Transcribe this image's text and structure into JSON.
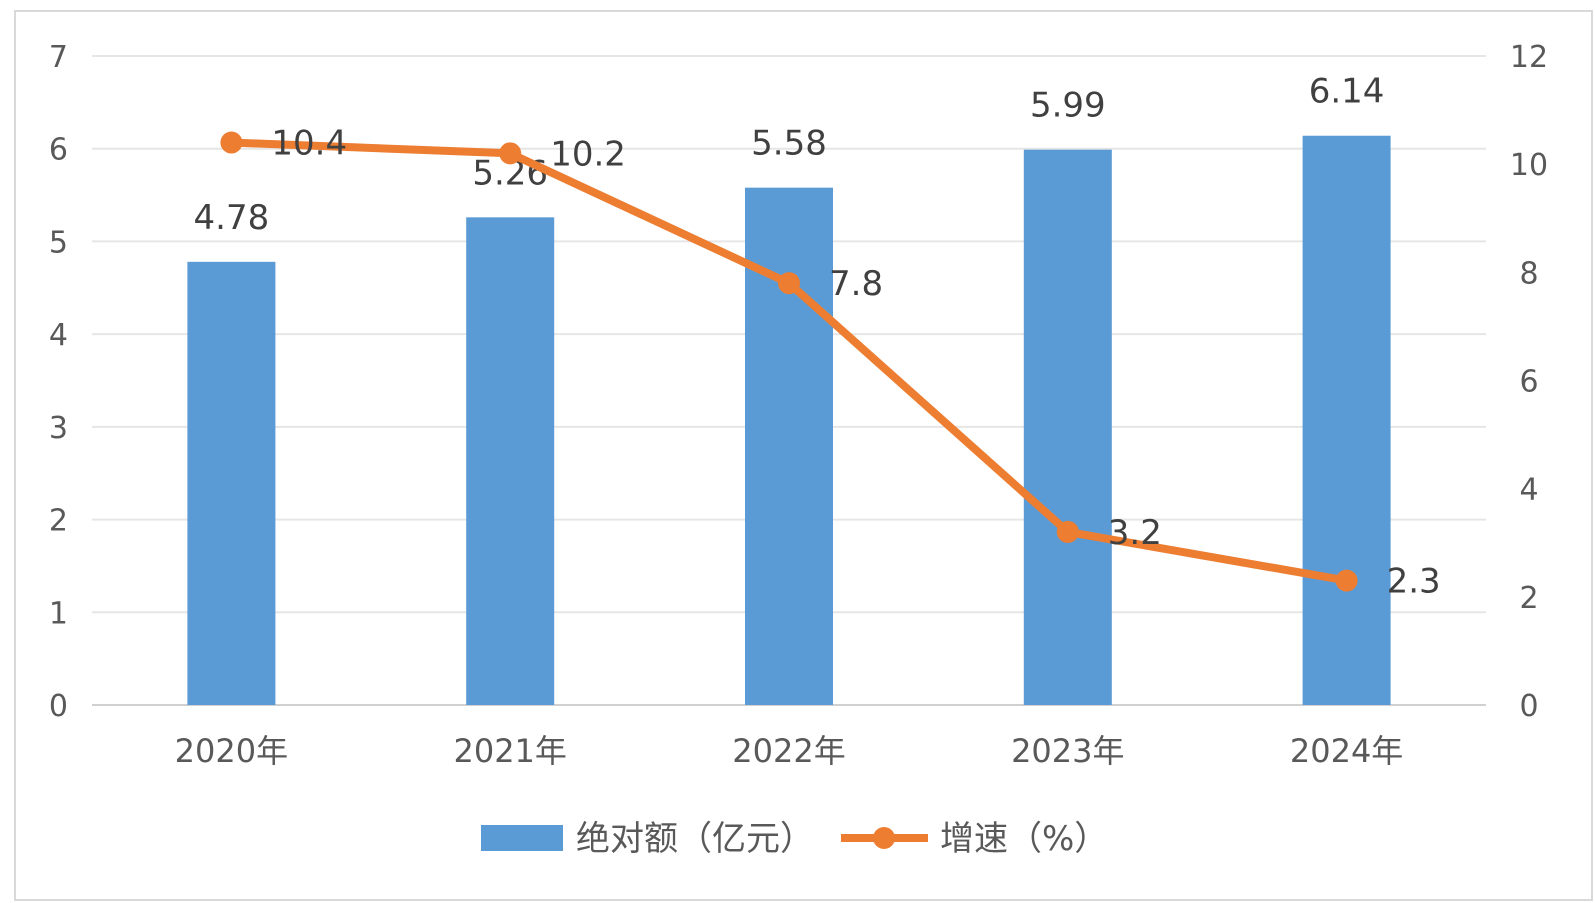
{
  "chart_data": {
    "type": "bar+line",
    "categories": [
      "2020年",
      "2021年",
      "2022年",
      "2023年",
      "2024年"
    ],
    "series": [
      {
        "name": "绝对额（亿元）",
        "type": "bar",
        "axis": "left",
        "color": "#5b9bd5",
        "values": [
          4.78,
          5.26,
          5.58,
          5.99,
          6.14
        ],
        "labels": [
          "4.78",
          "5.26",
          "5.58",
          "5.99",
          "6.14"
        ]
      },
      {
        "name": "增速（%）",
        "type": "line",
        "axis": "right",
        "color": "#ed7d31",
        "values": [
          10.4,
          10.2,
          7.8,
          3.2,
          2.3
        ],
        "labels": [
          "10.4",
          "10.2",
          "7.8",
          "3.2",
          "2.3"
        ]
      }
    ],
    "y_left": {
      "min": 0,
      "max": 7,
      "ticks": [
        "0",
        "1",
        "2",
        "3",
        "4",
        "5",
        "6",
        "7"
      ]
    },
    "y_right": {
      "min": 0,
      "max": 12,
      "ticks": [
        "0",
        "2",
        "4",
        "6",
        "8",
        "10",
        "12"
      ]
    },
    "grid": true,
    "legend": "bottom-center"
  }
}
